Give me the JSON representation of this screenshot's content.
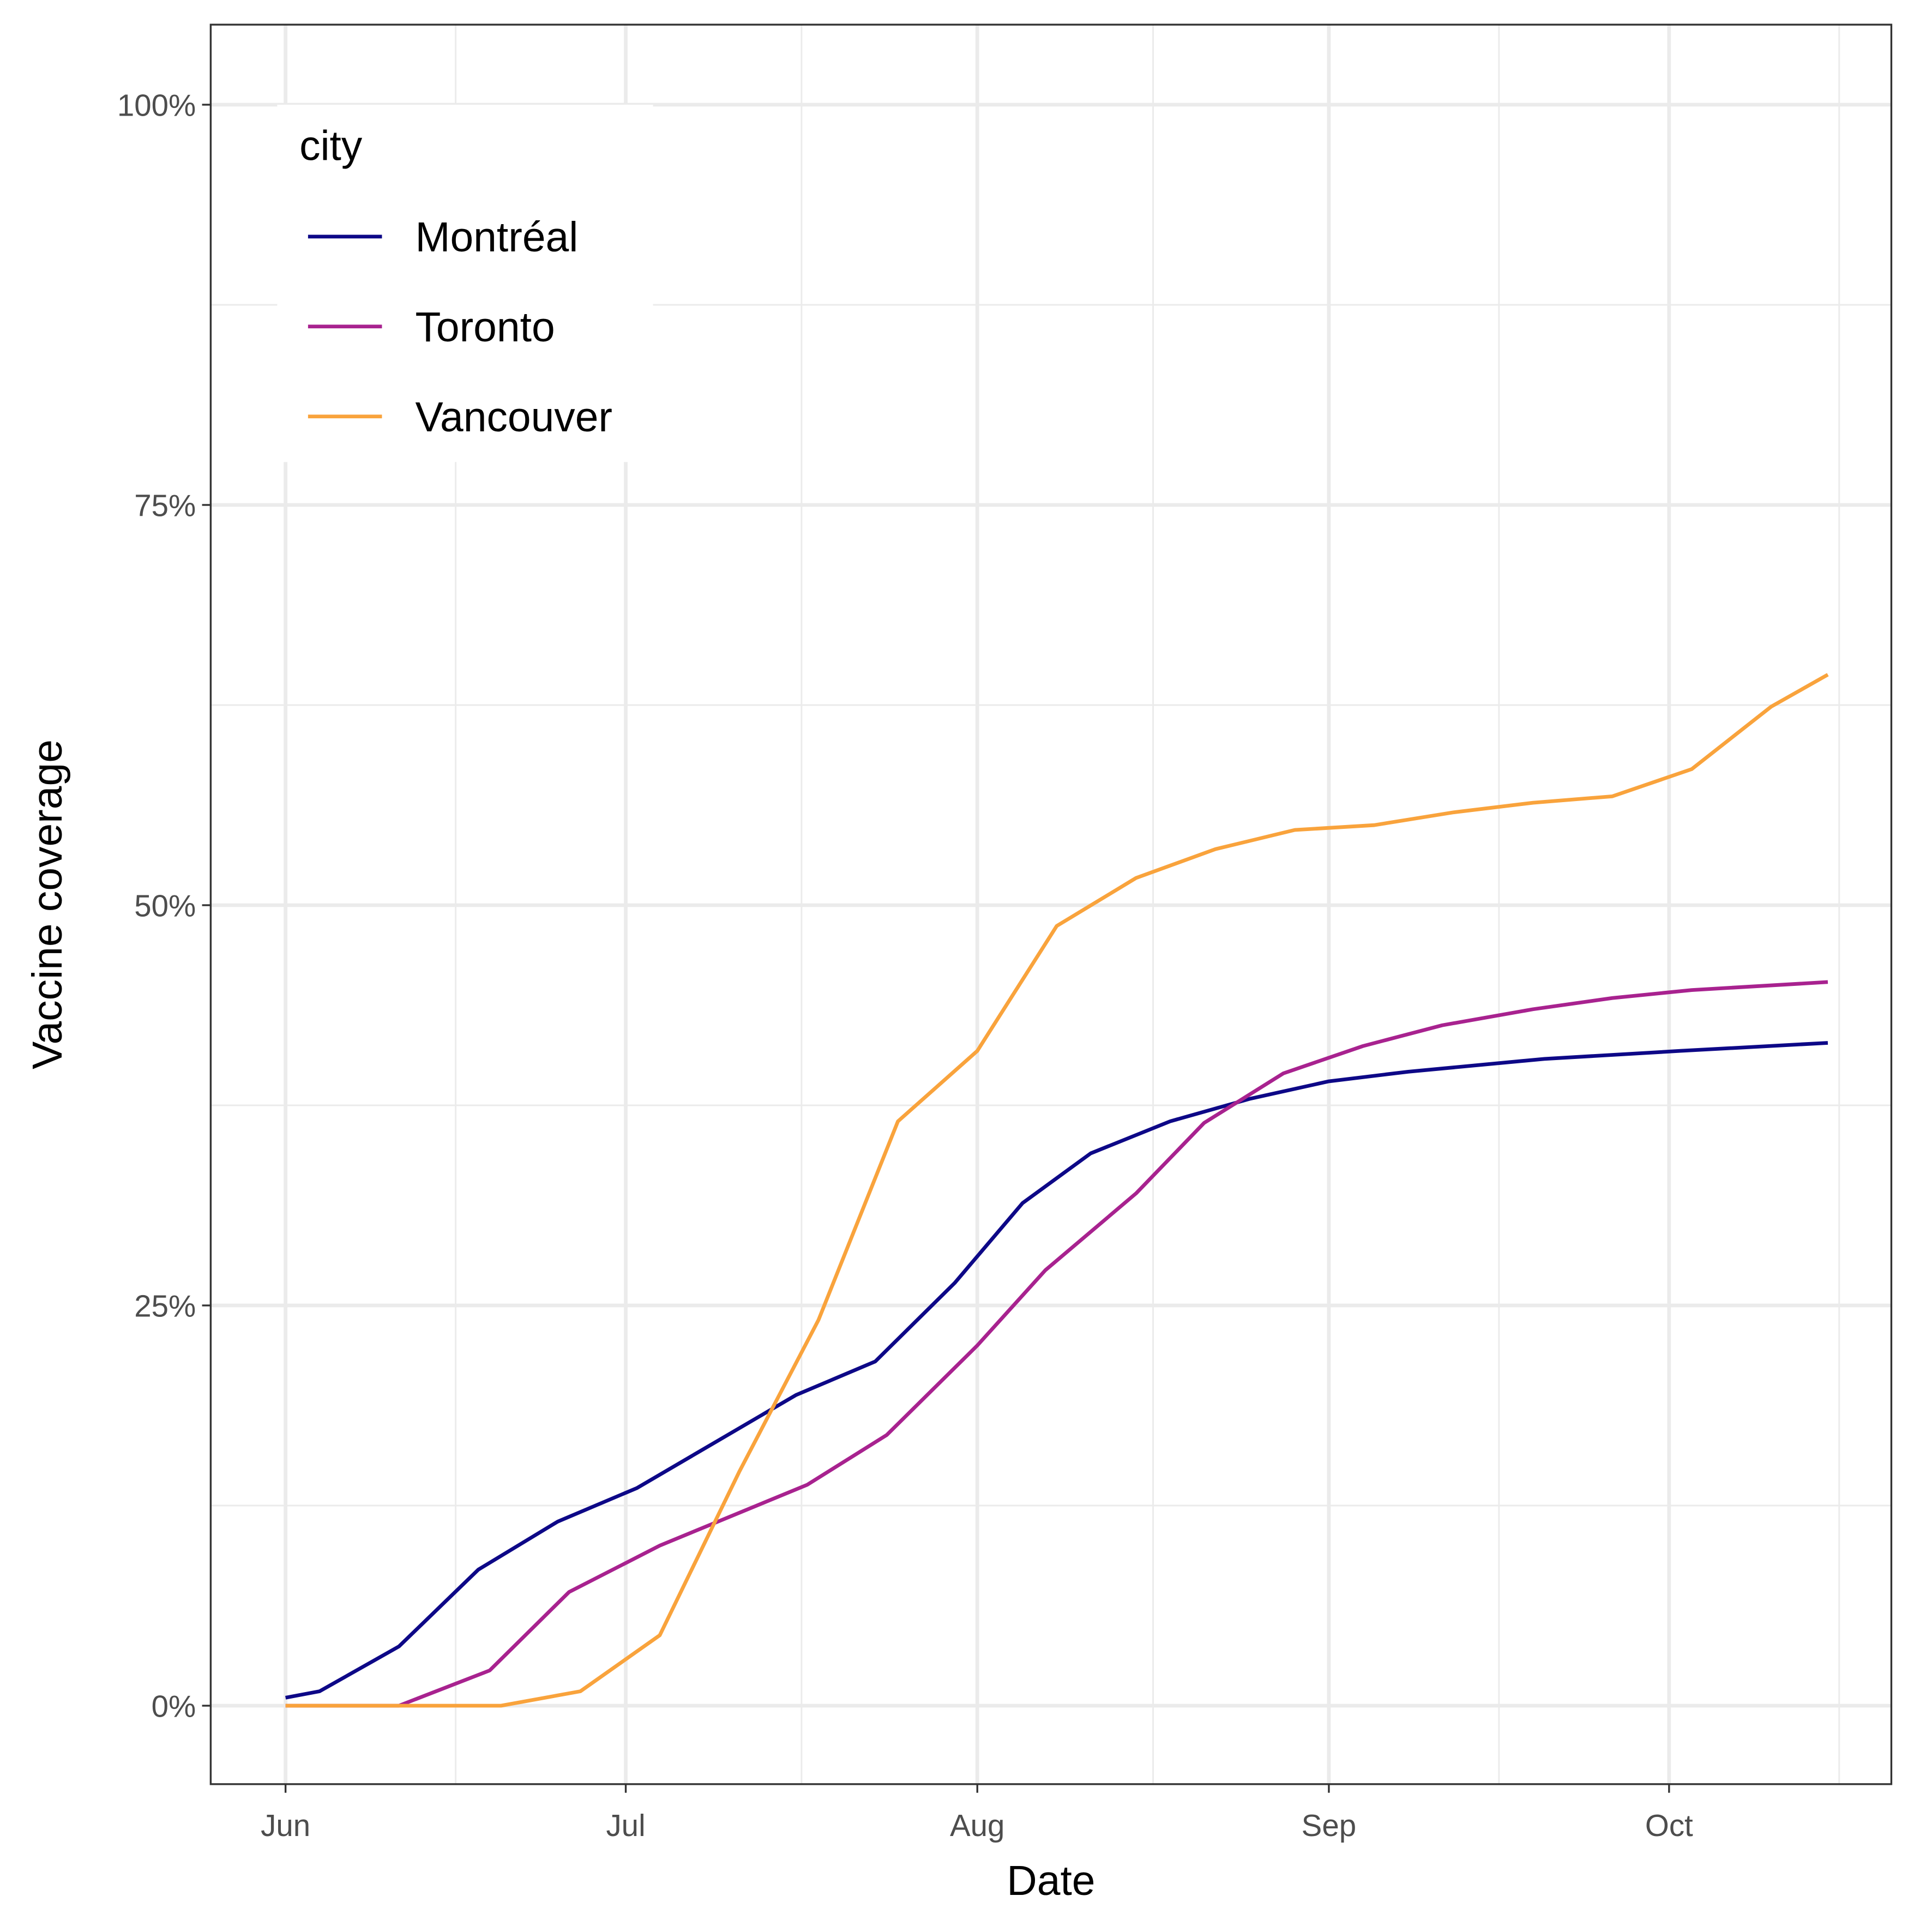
{
  "chart_data": {
    "type": "line",
    "x_label": "Date",
    "y_label": "Vaccine coverage",
    "legend_title": "city",
    "legend_position": "top-left",
    "grid": true,
    "xlim": [
      -6.6,
      141.6
    ],
    "ylim": [
      -4.9,
      105
    ],
    "xticks": [
      {
        "value": 0,
        "label": "Jun"
      },
      {
        "value": 30,
        "label": "Jul"
      },
      {
        "value": 61,
        "label": "Aug"
      },
      {
        "value": 92,
        "label": "Sep"
      },
      {
        "value": 122,
        "label": "Oct"
      }
    ],
    "yticks": [
      {
        "value": 0,
        "label": "0%"
      },
      {
        "value": 25,
        "label": "25%"
      },
      {
        "value": 50,
        "label": "50%"
      },
      {
        "value": 75,
        "label": "75%"
      },
      {
        "value": 100,
        "label": "100%"
      }
    ],
    "series": [
      {
        "name": "Montréal",
        "color": "#0d0887",
        "x": [
          0,
          3,
          10,
          17,
          24,
          31,
          38,
          45,
          52,
          59,
          65,
          71,
          78,
          85,
          92,
          99,
          111,
          123,
          136
        ],
        "values": [
          0.5,
          0.9,
          3.7,
          8.5,
          11.5,
          13.6,
          16.5,
          19.4,
          21.5,
          26.4,
          31.4,
          34.5,
          36.5,
          37.9,
          39.0,
          39.6,
          40.4,
          40.9,
          41.4
        ]
      },
      {
        "name": "Toronto",
        "color": "#a8228f",
        "x": [
          0,
          10,
          18,
          25,
          33,
          46,
          53,
          61,
          67,
          75,
          81,
          88,
          95,
          102,
          110,
          117,
          124,
          136
        ],
        "values": [
          0,
          0,
          2.2,
          7.1,
          10,
          13.8,
          16.9,
          22.5,
          27.2,
          32,
          36.4,
          39.5,
          41.2,
          42.5,
          43.5,
          44.2,
          44.7,
          45.2
        ]
      },
      {
        "name": "Vancouver",
        "color": "#f9a33c",
        "x": [
          0,
          19,
          26,
          33,
          40,
          47,
          54,
          61,
          68,
          75,
          82,
          89,
          96,
          103,
          110,
          117,
          124,
          131,
          136
        ],
        "values": [
          0,
          0,
          0.9,
          4.4,
          14.6,
          24.1,
          36.5,
          40.9,
          48.7,
          51.7,
          53.5,
          54.7,
          55,
          55.8,
          56.4,
          56.8,
          58.5,
          62.4,
          64.4
        ]
      }
    ]
  }
}
